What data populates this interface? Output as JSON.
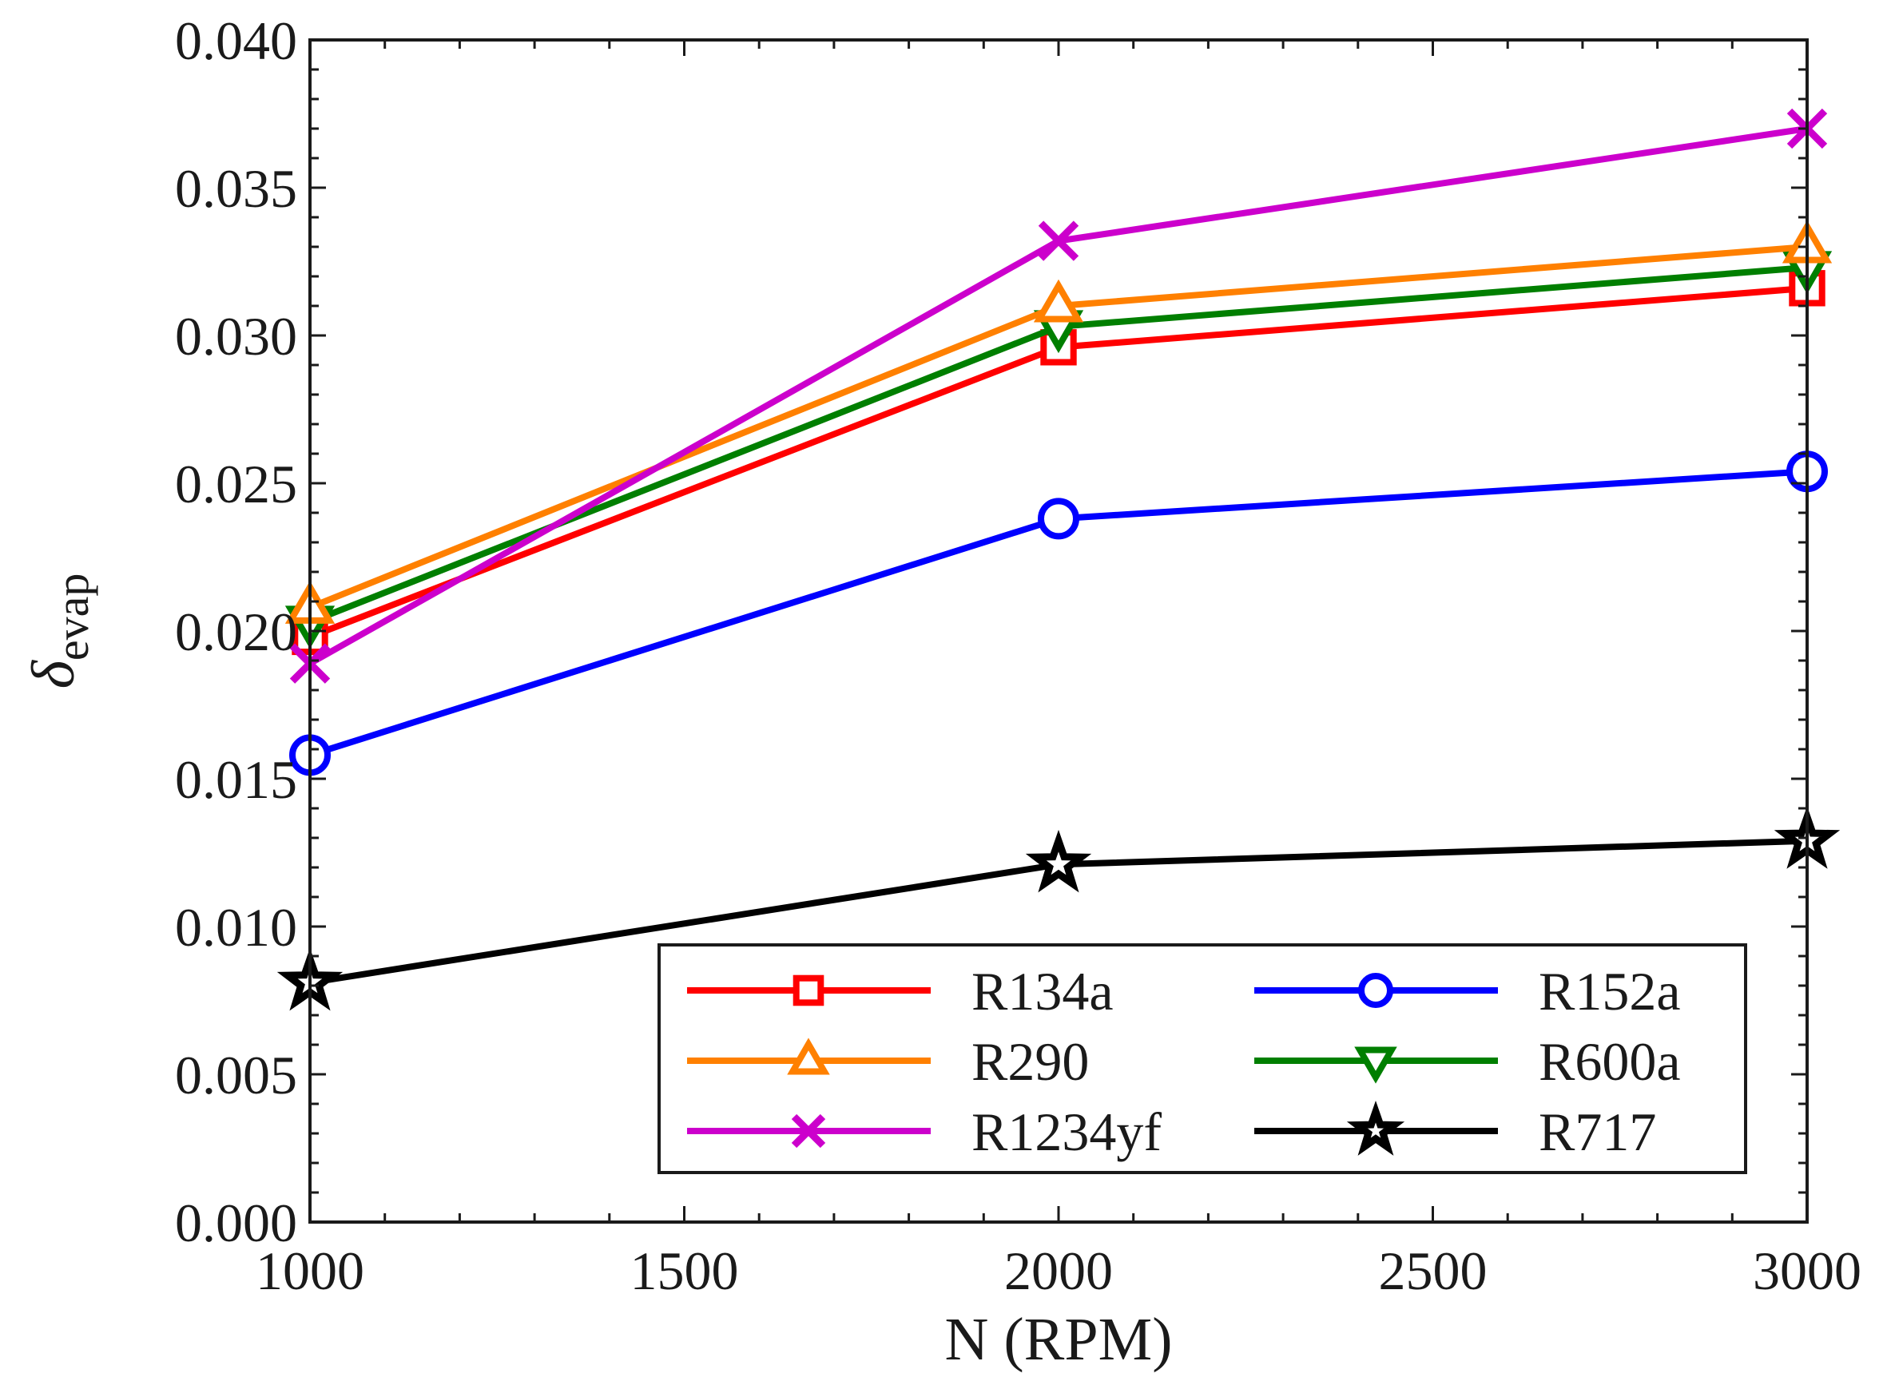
{
  "chart_data": {
    "type": "line",
    "title": "",
    "xlabel": "N (RPM)",
    "ylabel_symbol": "δ",
    "ylabel_subscript": "evap",
    "x": [
      1000,
      2000,
      3000
    ],
    "xlim": [
      1000,
      3000
    ],
    "ylim": [
      0,
      0.04
    ],
    "xticks": [
      1000,
      1500,
      2000,
      2500,
      3000
    ],
    "xtick_labels": [
      "1000",
      "1500",
      "2000",
      "2500",
      "3000"
    ],
    "yticks": [
      0,
      0.005,
      0.01,
      0.015,
      0.02,
      0.025,
      0.03,
      0.035,
      0.04
    ],
    "ytick_labels": [
      "0.000",
      "0.005",
      "0.010",
      "0.015",
      "0.020",
      "0.025",
      "0.030",
      "0.035",
      "0.040"
    ],
    "grid": false,
    "legend_position": "bottom-right",
    "series": [
      {
        "name": "R134a",
        "values": [
          0.0198,
          0.0296,
          0.0316
        ],
        "color": "#ff0000",
        "marker": "square"
      },
      {
        "name": "R152a",
        "values": [
          0.0158,
          0.0238,
          0.0254
        ],
        "color": "#0000ff",
        "marker": "circle"
      },
      {
        "name": "R290",
        "values": [
          0.0208,
          0.031,
          0.033
        ],
        "color": "#ff8000",
        "marker": "triangle-up"
      },
      {
        "name": "R600a",
        "values": [
          0.0203,
          0.0303,
          0.0323
        ],
        "color": "#007f00",
        "marker": "triangle-down"
      },
      {
        "name": "R1234yf",
        "values": [
          0.0189,
          0.0332,
          0.037
        ],
        "color": "#cc00cc",
        "marker": "x"
      },
      {
        "name": "R717",
        "values": [
          0.0081,
          0.0121,
          0.0129
        ],
        "color": "#000000",
        "marker": "star"
      }
    ]
  }
}
